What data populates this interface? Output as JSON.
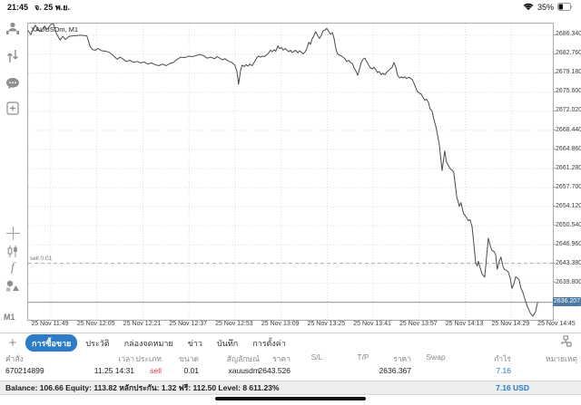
{
  "status_bar": {
    "time": "21:45",
    "date": "จ. 25 พ.ย.",
    "battery_percent": "35%"
  },
  "colors": {
    "tab_selected_blue": "#2e7cc7",
    "profit_blue": "#1f7bd4",
    "sell_red": "#e03b3b",
    "price_badge_blue": "#4d7aa0",
    "chart_line": "#4a4a4a"
  },
  "sidebar": {
    "icons": [
      "account-stats-icon",
      "updown-arrows-icon",
      "chat-icon",
      "new-order-icon",
      "crosshair-icon",
      "candlestick-icon",
      "indicator-f-icon",
      "objects-icon"
    ],
    "timeframe": "M1"
  },
  "chart": {
    "symbol_label": "XAUUSDm, M1",
    "sell_label": "sell 0.01",
    "current_price_label": "2636.207"
  },
  "chart_data": {
    "type": "line",
    "title": "XAUUSDm, M1",
    "ylabel": "price",
    "ylim": [
      2632.9,
      2688.5
    ],
    "grid": true,
    "y_ticks": [
      2686.34,
      2682.76,
      2679.18,
      2675.6,
      2672.02,
      2668.44,
      2664.86,
      2661.28,
      2657.7,
      2654.12,
      2650.54,
      2646.96,
      2643.38,
      2639.8
    ],
    "x_ticks": [
      "25 Nov 11:49",
      "25 Nov 12:05",
      "25 Nov 12:21",
      "25 Nov 12:37",
      "25 Nov 12:53",
      "25 Nov 13:09",
      "25 Nov 13:25",
      "25 Nov 13:41",
      "25 Nov 13:57",
      "25 Nov 14:13",
      "25 Nov 14:29",
      "25 Nov 14:45"
    ],
    "x_tick_start_frac": 0.04325,
    "x_tick_step_frac": 0.08777,
    "annotations": {
      "sell_line": 2643.526,
      "current_price": 2636.207
    },
    "series": [
      {
        "name": "XAUUSDm M1 bid",
        "points": [
          [
            0.0,
            2687.2
          ],
          [
            0.005,
            2686.4
          ],
          [
            0.01,
            2687.6
          ],
          [
            0.014,
            2688.2
          ],
          [
            0.019,
            2687.2
          ],
          [
            0.024,
            2687.0
          ],
          [
            0.031,
            2688.0
          ],
          [
            0.036,
            2687.4
          ],
          [
            0.043,
            2688.3
          ],
          [
            0.048,
            2688.5
          ],
          [
            0.054,
            2686.6
          ],
          [
            0.061,
            2685.4
          ],
          [
            0.066,
            2686.1
          ],
          [
            0.071,
            2685.5
          ],
          [
            0.078,
            2686.1
          ],
          [
            0.087,
            2686.2
          ],
          [
            0.1,
            2686.3
          ],
          [
            0.112,
            2686.2
          ],
          [
            0.118,
            2684.2
          ],
          [
            0.123,
            2683.6
          ],
          [
            0.128,
            2683.5
          ],
          [
            0.133,
            2683.8
          ],
          [
            0.14,
            2683.4
          ],
          [
            0.149,
            2683.3
          ],
          [
            0.156,
            2683.0
          ],
          [
            0.163,
            2682.4
          ],
          [
            0.17,
            2681.8
          ],
          [
            0.175,
            2682.2
          ],
          [
            0.18,
            2681.9
          ],
          [
            0.187,
            2681.4
          ],
          [
            0.194,
            2681.6
          ],
          [
            0.201,
            2681.2
          ],
          [
            0.208,
            2681.4
          ],
          [
            0.215,
            2681.1
          ],
          [
            0.221,
            2681.3
          ],
          [
            0.228,
            2680.9
          ],
          [
            0.235,
            2681.1
          ],
          [
            0.242,
            2680.8
          ],
          [
            0.249,
            2680.6
          ],
          [
            0.256,
            2680.9
          ],
          [
            0.263,
            2680.6
          ],
          [
            0.27,
            2681.0
          ],
          [
            0.277,
            2681.2
          ],
          [
            0.284,
            2681.8
          ],
          [
            0.291,
            2682.2
          ],
          [
            0.299,
            2682.1
          ],
          [
            0.306,
            2682.4
          ],
          [
            0.313,
            2682.3
          ],
          [
            0.32,
            2682.5
          ],
          [
            0.327,
            2682.7
          ],
          [
            0.334,
            2682.5
          ],
          [
            0.341,
            2682.0
          ],
          [
            0.348,
            2682.2
          ],
          [
            0.355,
            2681.9
          ],
          [
            0.36,
            2682.3
          ],
          [
            0.365,
            2682.0
          ],
          [
            0.37,
            2681.7
          ],
          [
            0.375,
            2681.9
          ],
          [
            0.381,
            2681.5
          ],
          [
            0.388,
            2681.2
          ],
          [
            0.394,
            2680.7
          ],
          [
            0.398,
            2679.5
          ],
          [
            0.401,
            2677.1
          ],
          [
            0.405,
            2679.8
          ],
          [
            0.408,
            2680.7
          ],
          [
            0.412,
            2680.4
          ],
          [
            0.415,
            2680.8
          ],
          [
            0.419,
            2680.5
          ],
          [
            0.422,
            2680.9
          ],
          [
            0.427,
            2680.6
          ],
          [
            0.433,
            2681.6
          ],
          [
            0.436,
            2682.1
          ],
          [
            0.439,
            2682.4
          ],
          [
            0.443,
            2682.2
          ],
          [
            0.446,
            2682.4
          ],
          [
            0.45,
            2682.3
          ],
          [
            0.453,
            2682.5
          ],
          [
            0.457,
            2682.8
          ],
          [
            0.462,
            2683.5
          ],
          [
            0.465,
            2683.2
          ],
          [
            0.469,
            2683.6
          ],
          [
            0.472,
            2683.3
          ],
          [
            0.476,
            2684.3
          ],
          [
            0.479,
            2683.8
          ],
          [
            0.483,
            2684.0
          ],
          [
            0.486,
            2683.5
          ],
          [
            0.49,
            2683.8
          ],
          [
            0.493,
            2683.5
          ],
          [
            0.497,
            2683.2
          ],
          [
            0.5,
            2683.5
          ],
          [
            0.503,
            2683.1
          ],
          [
            0.507,
            2683.3
          ],
          [
            0.51,
            2683.5
          ],
          [
            0.514,
            2683.0
          ],
          [
            0.517,
            2683.4
          ],
          [
            0.521,
            2683.1
          ],
          [
            0.524,
            2682.8
          ],
          [
            0.528,
            2683.2
          ],
          [
            0.531,
            2683.8
          ],
          [
            0.535,
            2685.0
          ],
          [
            0.538,
            2684.6
          ],
          [
            0.541,
            2685.6
          ],
          [
            0.545,
            2686.3
          ],
          [
            0.548,
            2687.0
          ],
          [
            0.552,
            2686.2
          ],
          [
            0.555,
            2685.7
          ],
          [
            0.559,
            2686.3
          ],
          [
            0.562,
            2687.1
          ],
          [
            0.566,
            2687.3
          ],
          [
            0.569,
            2687.6
          ],
          [
            0.573,
            2687.0
          ],
          [
            0.576,
            2686.5
          ],
          [
            0.58,
            2686.8
          ],
          [
            0.583,
            2685.7
          ],
          [
            0.587,
            2683.5
          ],
          [
            0.59,
            2682.8
          ],
          [
            0.593,
            2682.6
          ],
          [
            0.597,
            2682.4
          ],
          [
            0.6,
            2682.2
          ],
          [
            0.604,
            2681.9
          ],
          [
            0.607,
            2681.4
          ],
          [
            0.611,
            2681.6
          ],
          [
            0.614,
            2681.2
          ],
          [
            0.618,
            2681.0
          ],
          [
            0.621,
            2680.2
          ],
          [
            0.625,
            2679.5
          ],
          [
            0.628,
            2678.8
          ],
          [
            0.631,
            2679.8
          ],
          [
            0.635,
            2681.2
          ],
          [
            0.638,
            2681.8
          ],
          [
            0.642,
            2682.0
          ],
          [
            0.645,
            2681.4
          ],
          [
            0.649,
            2680.7
          ],
          [
            0.652,
            2680.2
          ],
          [
            0.656,
            2680.0
          ],
          [
            0.659,
            2680.3
          ],
          [
            0.663,
            2679.8
          ],
          [
            0.666,
            2679.3
          ],
          [
            0.669,
            2679.5
          ],
          [
            0.673,
            2678.9
          ],
          [
            0.676,
            2679.2
          ],
          [
            0.68,
            2678.9
          ],
          [
            0.683,
            2679.3
          ],
          [
            0.687,
            2679.7
          ],
          [
            0.69,
            2680.0
          ],
          [
            0.694,
            2680.3
          ],
          [
            0.697,
            2681.2
          ],
          [
            0.701,
            2680.2
          ],
          [
            0.704,
            2678.8
          ],
          [
            0.708,
            2678.3
          ],
          [
            0.711,
            2678.5
          ],
          [
            0.714,
            2678.3
          ],
          [
            0.718,
            2678.5
          ],
          [
            0.721,
            2678.2
          ],
          [
            0.725,
            2678.4
          ],
          [
            0.728,
            2678.3
          ],
          [
            0.732,
            2678.0
          ],
          [
            0.735,
            2677.4
          ],
          [
            0.739,
            2676.4
          ],
          [
            0.742,
            2675.7
          ],
          [
            0.746,
            2675.4
          ],
          [
            0.749,
            2675.3
          ],
          [
            0.752,
            2674.7
          ],
          [
            0.756,
            2674.1
          ],
          [
            0.759,
            2674.3
          ],
          [
            0.763,
            2673.7
          ],
          [
            0.766,
            2672.5
          ],
          [
            0.77,
            2672.0
          ],
          [
            0.773,
            2670.6
          ],
          [
            0.777,
            2669.2
          ],
          [
            0.78,
            2667.8
          ],
          [
            0.784,
            2665.4
          ],
          [
            0.789,
            2660.9
          ],
          [
            0.794,
            2664.6
          ],
          [
            0.797,
            2662.6
          ],
          [
            0.801,
            2661.8
          ],
          [
            0.804,
            2661.3
          ],
          [
            0.808,
            2661.0
          ],
          [
            0.811,
            2660.6
          ],
          [
            0.817,
            2655.9
          ],
          [
            0.822,
            2654.2
          ],
          [
            0.825,
            2654.9
          ],
          [
            0.83,
            2652.8
          ],
          [
            0.834,
            2652.3
          ],
          [
            0.839,
            2651.5
          ],
          [
            0.842,
            2651.7
          ],
          [
            0.846,
            2650.4
          ],
          [
            0.849,
            2647.6
          ],
          [
            0.853,
            2643.6
          ],
          [
            0.856,
            2643.0
          ],
          [
            0.858,
            2643.9
          ],
          [
            0.861,
            2642.8
          ],
          [
            0.865,
            2641.5
          ],
          [
            0.87,
            2640.9
          ],
          [
            0.874,
            2645.1
          ],
          [
            0.877,
            2648.2
          ],
          [
            0.881,
            2646.7
          ],
          [
            0.884,
            2645.9
          ],
          [
            0.888,
            2645.7
          ],
          [
            0.891,
            2645.1
          ],
          [
            0.894,
            2642.4
          ],
          [
            0.898,
            2643.9
          ],
          [
            0.901,
            2644.7
          ],
          [
            0.905,
            2642.9
          ],
          [
            0.908,
            2642.3
          ],
          [
            0.912,
            2642.2
          ],
          [
            0.915,
            2641.9
          ],
          [
            0.919,
            2640.6
          ],
          [
            0.922,
            2638.8
          ],
          [
            0.926,
            2639.7
          ],
          [
            0.929,
            2641.0
          ],
          [
            0.933,
            2640.7
          ],
          [
            0.936,
            2640.3
          ],
          [
            0.939,
            2638.9
          ],
          [
            0.943,
            2638.0
          ],
          [
            0.946,
            2637.0
          ],
          [
            0.951,
            2635.5
          ],
          [
            0.957,
            2634.2
          ],
          [
            0.962,
            2633.6
          ],
          [
            0.967,
            2634.4
          ],
          [
            0.971,
            2636.2
          ]
        ]
      }
    ]
  },
  "tabs": [
    {
      "label": "การซื้อขาย",
      "selected": true
    },
    {
      "label": "ประวัติ",
      "selected": false
    },
    {
      "label": "กล่องจดหมาย",
      "selected": false
    },
    {
      "label": "ข่าว",
      "selected": false
    },
    {
      "label": "บันทึก",
      "selected": false
    },
    {
      "label": "การตั้งค่า",
      "selected": false
    }
  ],
  "trade_table": {
    "columns": [
      "คำสั่ง",
      "เวลา",
      "ประเภท",
      "ขนาด",
      "สัญลักษณ์",
      "ราคา",
      "S/L",
      "T/P",
      "ราคา",
      "Swap",
      "กำไร",
      "หมายเหตุ"
    ],
    "row": {
      "order": "670214899",
      "time": "11.25 14:31",
      "type": "sell",
      "size": "0.01",
      "symbol": "xauusdm",
      "open_price": "2643.526",
      "sl": "",
      "tp": "",
      "price": "2636.367",
      "swap": "",
      "profit": "7.16",
      "comment": ""
    }
  },
  "balance_line": {
    "text": "Balance: 106.66 Equity: 113.82 หลักประกัน: 1.32 ฟรี: 112.50 Level: 8 611.23%",
    "profit_total": "7.16  USD"
  }
}
